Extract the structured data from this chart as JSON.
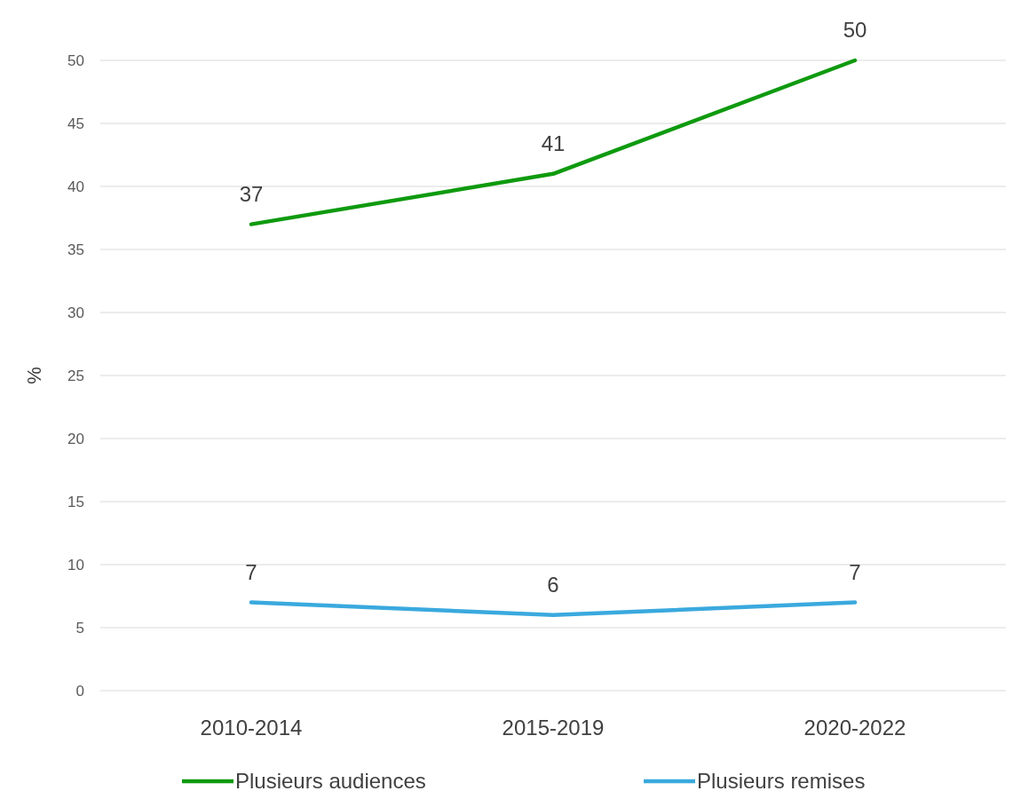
{
  "chart_data": {
    "type": "line",
    "ylabel": "%",
    "categories": [
      "2010-2014",
      "2015-2019",
      "2020-2022"
    ],
    "series": [
      {
        "name": "Plusieurs audiences",
        "color": "#0f9a0f",
        "values": [
          37,
          41,
          50
        ]
      },
      {
        "name": "Plusieurs remises",
        "color": "#3aa9de",
        "values": [
          7,
          6,
          7
        ]
      }
    ],
    "ylim": [
      0,
      50
    ],
    "yticks": [
      0,
      5,
      10,
      15,
      20,
      25,
      30,
      35,
      40,
      45,
      50
    ],
    "grid": "y",
    "legend": "bottom",
    "data_labels": true,
    "marker": "none",
    "line_style": "solid"
  }
}
